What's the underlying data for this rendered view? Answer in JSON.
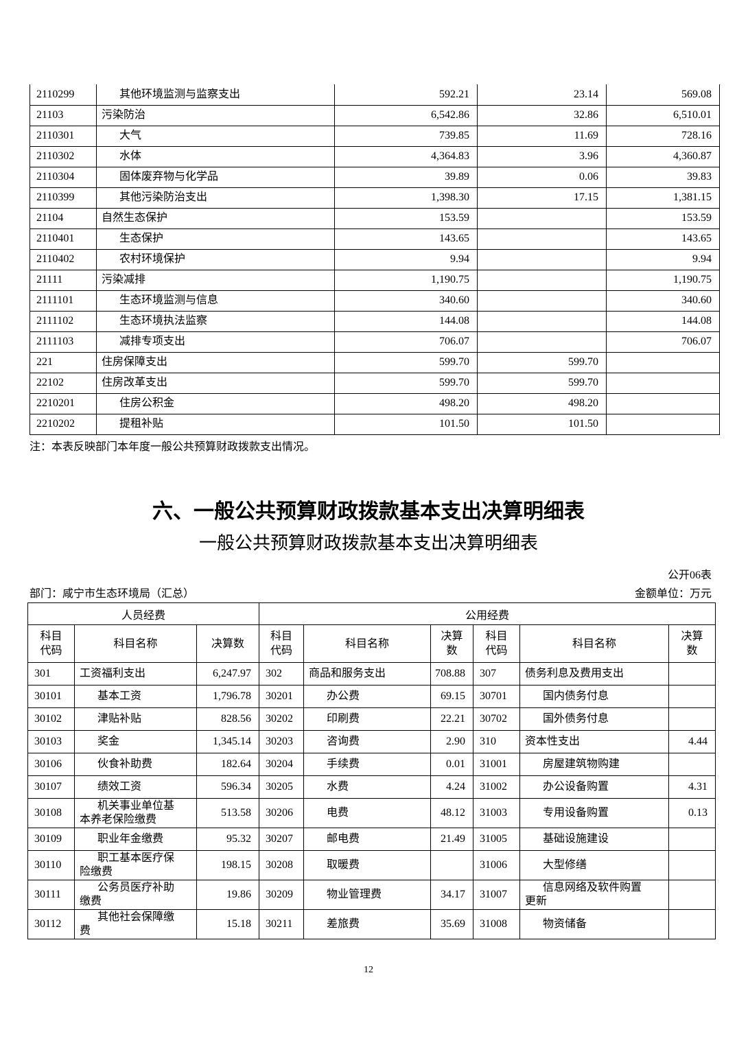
{
  "page_number": "12",
  "continuation_table": {
    "note": "注：本表反映部门本年度一般公共预算财政拨款支出情况。",
    "rows": [
      {
        "code": "2110299",
        "name": "其他环境监测与监察支出",
        "indent": 1,
        "v1": "592.21",
        "v2": "23.14",
        "v3": "569.08"
      },
      {
        "code": "21103",
        "name": "污染防治",
        "indent": 0,
        "v1": "6,542.86",
        "v2": "32.86",
        "v3": "6,510.01"
      },
      {
        "code": "2110301",
        "name": "大气",
        "indent": 1,
        "v1": "739.85",
        "v2": "11.69",
        "v3": "728.16"
      },
      {
        "code": "2110302",
        "name": "水体",
        "indent": 1,
        "v1": "4,364.83",
        "v2": "3.96",
        "v3": "4,360.87"
      },
      {
        "code": "2110304",
        "name": "固体废弃物与化学品",
        "indent": 1,
        "v1": "39.89",
        "v2": "0.06",
        "v3": "39.83"
      },
      {
        "code": "2110399",
        "name": "其他污染防治支出",
        "indent": 1,
        "v1": "1,398.30",
        "v2": "17.15",
        "v3": "1,381.15"
      },
      {
        "code": "21104",
        "name": "自然生态保护",
        "indent": 0,
        "v1": "153.59",
        "v2": "",
        "v3": "153.59"
      },
      {
        "code": "2110401",
        "name": "生态保护",
        "indent": 1,
        "v1": "143.65",
        "v2": "",
        "v3": "143.65"
      },
      {
        "code": "2110402",
        "name": "农村环境保护",
        "indent": 1,
        "v1": "9.94",
        "v2": "",
        "v3": "9.94"
      },
      {
        "code": "21111",
        "name": "污染减排",
        "indent": 0,
        "v1": "1,190.75",
        "v2": "",
        "v3": "1,190.75"
      },
      {
        "code": "2111101",
        "name": "生态环境监测与信息",
        "indent": 1,
        "v1": "340.60",
        "v2": "",
        "v3": "340.60"
      },
      {
        "code": "2111102",
        "name": "生态环境执法监察",
        "indent": 1,
        "v1": "144.08",
        "v2": "",
        "v3": "144.08"
      },
      {
        "code": "2111103",
        "name": "减排专项支出",
        "indent": 1,
        "v1": "706.07",
        "v2": "",
        "v3": "706.07"
      },
      {
        "code": "221",
        "name": "住房保障支出",
        "indent": 0,
        "v1": "599.70",
        "v2": "599.70",
        "v3": ""
      },
      {
        "code": "22102",
        "name": "住房改革支出",
        "indent": 0,
        "v1": "599.70",
        "v2": "599.70",
        "v3": ""
      },
      {
        "code": "2210201",
        "name": "住房公积金",
        "indent": 1,
        "v1": "498.20",
        "v2": "498.20",
        "v3": ""
      },
      {
        "code": "2210202",
        "name": "提租补贴",
        "indent": 1,
        "v1": "101.50",
        "v2": "101.50",
        "v3": ""
      }
    ]
  },
  "section": {
    "title": "六、一般公共预算财政拨款基本支出决算明细表",
    "subtitle": "一般公共预算财政拨款基本支出决算明细表",
    "table_code": "公开06表",
    "department": "部门：咸宁市生态环境局（汇总）",
    "unit": "金额单位：万元"
  },
  "detail_table": {
    "group_headers": [
      "人员经费",
      "公用经费"
    ],
    "col_headers": [
      "科目\n代码",
      "科目名称",
      "决算数",
      "科目\n代码",
      "科目名称",
      "决算\n数",
      "科目\n代码",
      "科目名称",
      "决算\n数"
    ],
    "rows": [
      {
        "tall": false,
        "cells": [
          {
            "code": "301",
            "name": "工资福利支出",
            "indent": 0,
            "amount": "6,247.97"
          },
          {
            "code": "302",
            "name": "商品和服务支出",
            "indent": 0,
            "amount": "708.88"
          },
          {
            "code": "307",
            "name": "债务利息及费用支出",
            "indent": 0,
            "amount": ""
          }
        ]
      },
      {
        "tall": false,
        "cells": [
          {
            "code": "30101",
            "name": "基本工资",
            "indent": 1,
            "amount": "1,796.78"
          },
          {
            "code": "30201",
            "name": "办公费",
            "indent": 1,
            "amount": "69.15"
          },
          {
            "code": "30701",
            "name": "国内债务付息",
            "indent": 1,
            "amount": ""
          }
        ]
      },
      {
        "tall": false,
        "cells": [
          {
            "code": "30102",
            "name": "津贴补贴",
            "indent": 1,
            "amount": "828.56"
          },
          {
            "code": "30202",
            "name": "印刷费",
            "indent": 1,
            "amount": "22.21"
          },
          {
            "code": "30702",
            "name": "国外债务付息",
            "indent": 1,
            "amount": ""
          }
        ]
      },
      {
        "tall": false,
        "cells": [
          {
            "code": "30103",
            "name": "奖金",
            "indent": 1,
            "amount": "1,345.14"
          },
          {
            "code": "30203",
            "name": "咨询费",
            "indent": 1,
            "amount": "2.90"
          },
          {
            "code": "310",
            "name": "资本性支出",
            "indent": 0,
            "amount": "4.44"
          }
        ]
      },
      {
        "tall": false,
        "cells": [
          {
            "code": "30106",
            "name": "伙食补助费",
            "indent": 1,
            "amount": "182.64"
          },
          {
            "code": "30204",
            "name": "手续费",
            "indent": 1,
            "amount": "0.01"
          },
          {
            "code": "31001",
            "name": "房屋建筑物购建",
            "indent": 1,
            "amount": ""
          }
        ]
      },
      {
        "tall": false,
        "cells": [
          {
            "code": "30107",
            "name": "绩效工资",
            "indent": 1,
            "amount": "596.34"
          },
          {
            "code": "30205",
            "name": "水费",
            "indent": 1,
            "amount": "4.24"
          },
          {
            "code": "31002",
            "name": "办公设备购置",
            "indent": 1,
            "amount": "4.31"
          }
        ]
      },
      {
        "tall": true,
        "cells": [
          {
            "code": "30108",
            "name": "机关事业单位基\n本养老保险缴费",
            "indent": 1,
            "amount": "513.58"
          },
          {
            "code": "30206",
            "name": "电费",
            "indent": 1,
            "amount": "48.12"
          },
          {
            "code": "31003",
            "name": "专用设备购置",
            "indent": 1,
            "amount": "0.13"
          }
        ]
      },
      {
        "tall": false,
        "cells": [
          {
            "code": "30109",
            "name": "职业年金缴费",
            "indent": 1,
            "amount": "95.32"
          },
          {
            "code": "30207",
            "name": "邮电费",
            "indent": 1,
            "amount": "21.49"
          },
          {
            "code": "31005",
            "name": "基础设施建设",
            "indent": 1,
            "amount": ""
          }
        ]
      },
      {
        "tall": true,
        "cells": [
          {
            "code": "30110",
            "name": "职工基本医疗保\n险缴费",
            "indent": 1,
            "amount": "198.15"
          },
          {
            "code": "30208",
            "name": "取暖费",
            "indent": 1,
            "amount": ""
          },
          {
            "code": "31006",
            "name": "大型修缮",
            "indent": 1,
            "amount": ""
          }
        ]
      },
      {
        "tall": true,
        "cells": [
          {
            "code": "30111",
            "name": "公务员医疗补助\n缴费",
            "indent": 1,
            "amount": "19.86"
          },
          {
            "code": "30209",
            "name": "物业管理费",
            "indent": 1,
            "amount": "34.17"
          },
          {
            "code": "31007",
            "name": "信息网络及软件购置\n更新",
            "indent": 1,
            "amount": ""
          }
        ]
      },
      {
        "tall": true,
        "cells": [
          {
            "code": "30112",
            "name": "其他社会保障缴\n费",
            "indent": 1,
            "amount": "15.18"
          },
          {
            "code": "30211",
            "name": "差旅费",
            "indent": 1,
            "amount": "35.69"
          },
          {
            "code": "31008",
            "name": "物资储备",
            "indent": 1,
            "amount": ""
          }
        ]
      }
    ]
  }
}
